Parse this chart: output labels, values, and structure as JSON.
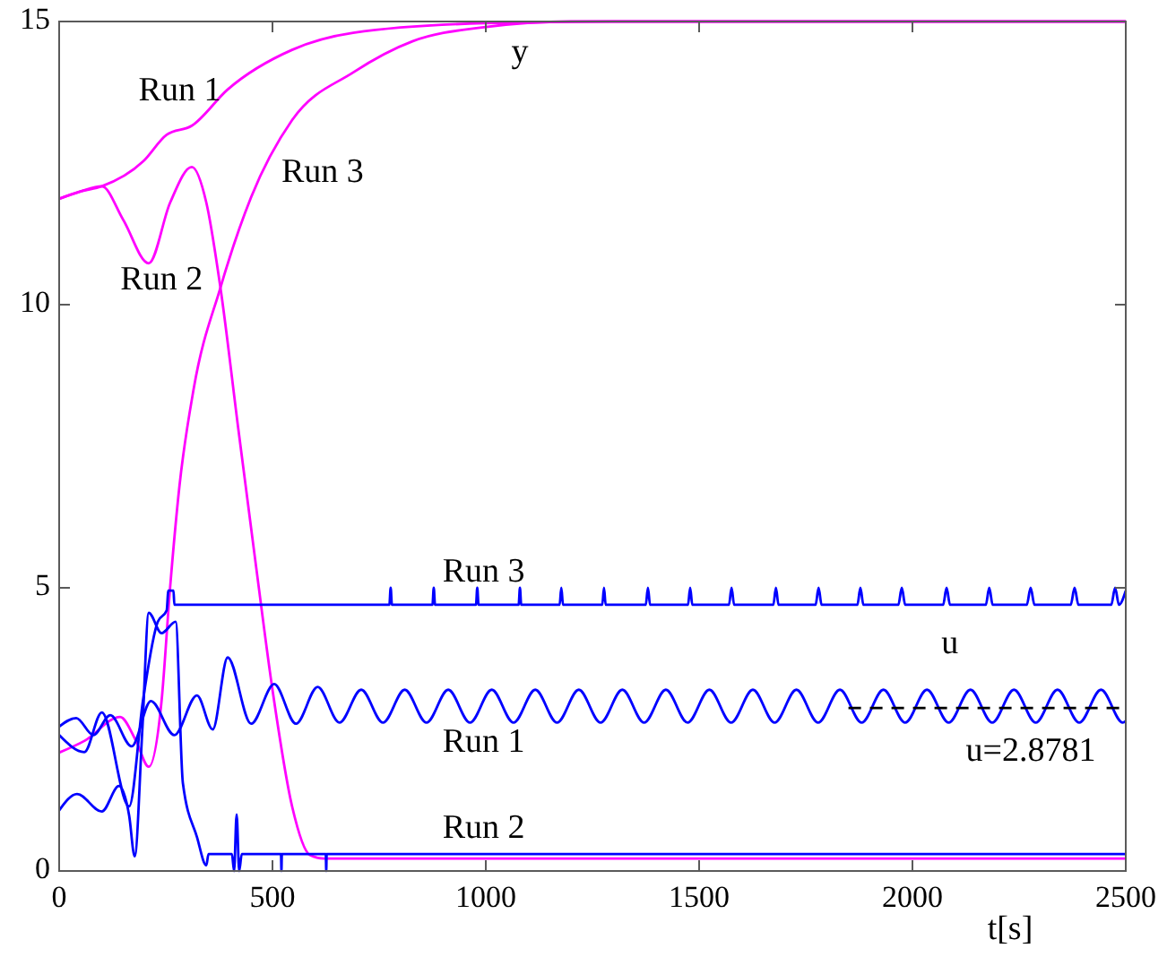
{
  "chart_data": {
    "type": "line",
    "xlabel": "t[s]",
    "xlim": [
      0,
      2500
    ],
    "ylim": [
      0,
      15
    ],
    "xticks": [
      0,
      500,
      1000,
      1500,
      2000,
      2500
    ],
    "yticks": [
      0,
      5,
      10,
      15
    ],
    "grid": false,
    "marker": "none",
    "line_style": "solid",
    "series": [
      {
        "color": "#ff00ff",
        "x": [
          0,
          50,
          100,
          197,
          252,
          311,
          395,
          546,
          689,
          996,
          1300,
          2500
        ],
        "values": [
          11.87,
          12.0,
          12.09,
          12.53,
          13.0,
          13.16,
          13.8,
          14.5,
          14.8,
          14.97,
          15,
          15
        ]
      },
      {
        "color": "#ff00ff",
        "x": [
          0,
          50,
          100,
          150,
          210,
          260,
          311,
          345,
          378,
          420,
          462,
          500,
          546,
          588,
          620,
          2500
        ],
        "values": [
          11.87,
          12.0,
          12.09,
          11.5,
          10.73,
          11.8,
          12.43,
          11.8,
          10.3,
          7.8,
          5.35,
          3.2,
          1.14,
          0.28,
          0.22,
          0.22
        ]
      },
      {
        "color": "#ff00ff",
        "x": [
          0,
          60,
          143,
          180,
          210,
          240,
          260,
          282,
          315,
          378,
          450,
          546,
          689,
          828,
          996,
          1200,
          2500
        ],
        "values": [
          2.09,
          2.3,
          2.72,
          2.3,
          1.84,
          3.0,
          5.0,
          6.8,
          8.5,
          10.3,
          11.9,
          13.26,
          14.1,
          14.65,
          14.9,
          15,
          15
        ]
      },
      {
        "color": "#0000ff",
        "x": [
          0,
          40,
          80,
          120,
          170,
          215,
          270,
          323,
          360,
          395,
          450,
          504,
          555,
          606,
          657,
          708,
          759,
          810,
          861,
          912,
          963,
          1014,
          1065,
          1116,
          1167,
          1218,
          1269,
          1320,
          1371,
          1422,
          1473,
          1524,
          1575,
          1626,
          1677,
          1728,
          1779,
          1830,
          1881,
          1932,
          1983,
          2034,
          2085,
          2136,
          2187,
          2238,
          2289,
          2340,
          2391,
          2442,
          2493,
          2500
        ],
        "values": [
          2.55,
          2.7,
          2.4,
          2.75,
          2.2,
          3.0,
          2.4,
          3.1,
          2.5,
          3.77,
          2.6,
          3.3,
          2.6,
          3.25,
          2.62,
          3.2,
          2.62,
          3.2,
          2.62,
          3.2,
          2.62,
          3.2,
          2.62,
          3.2,
          2.62,
          3.2,
          2.62,
          3.2,
          2.62,
          3.2,
          2.62,
          3.2,
          2.62,
          3.2,
          2.62,
          3.2,
          2.62,
          3.2,
          2.62,
          3.2,
          2.62,
          3.2,
          2.62,
          3.2,
          2.62,
          3.2,
          2.62,
          3.2,
          2.62,
          3.2,
          2.62,
          2.65
        ]
      },
      {
        "color": "#0000ff",
        "x": [
          0,
          42,
          100,
          140,
          164,
          177,
          195,
          210,
          240,
          273,
          290,
          323,
          345,
          350,
          405,
          410,
          416,
          422,
          428,
          520,
          521,
          522,
          625,
          626,
          627,
          2500
        ],
        "values": [
          1.07,
          1.36,
          1.05,
          1.5,
          0.98,
          0.26,
          2.5,
          4.56,
          4.2,
          4.4,
          1.55,
          0.6,
          0.1,
          0.3,
          0.3,
          0.0,
          1.0,
          0.0,
          0.3,
          0.3,
          0.0,
          0.3,
          0.3,
          0.0,
          0.3,
          0.3
        ]
      },
      {
        "color": "#0000ff",
        "x": [
          0,
          59,
          100,
          164,
          197,
          231,
          252,
          256,
          262,
          268,
          270,
          774,
          777,
          780,
          875,
          878,
          881,
          977,
          980,
          983,
          1077,
          1080,
          1083,
          1173,
          1177,
          1181,
          1273,
          1277,
          1281,
          1375,
          1380,
          1385,
          1474,
          1479,
          1484,
          1570,
          1576,
          1582,
          1674,
          1680,
          1686,
          1773,
          1780,
          1787,
          1871,
          1878,
          1885,
          1967,
          1975,
          1983,
          2072,
          2080,
          2088,
          2172,
          2180,
          2188,
          2268,
          2277,
          2286,
          2371,
          2380,
          2389,
          2466,
          2475,
          2484,
          2500
        ],
        "values": [
          2.4,
          2.1,
          2.8,
          1.14,
          3.04,
          4.4,
          4.6,
          4.95,
          4.95,
          4.95,
          4.7,
          4.7,
          5.0,
          4.7,
          4.7,
          5.0,
          4.7,
          4.7,
          5.0,
          4.7,
          4.7,
          5.0,
          4.7,
          4.7,
          5.0,
          4.7,
          4.7,
          5.0,
          4.7,
          4.7,
          5.0,
          4.7,
          4.7,
          5.0,
          4.7,
          4.7,
          5.0,
          4.7,
          4.7,
          5.0,
          4.7,
          4.7,
          5.0,
          4.7,
          4.7,
          5.0,
          4.7,
          4.7,
          5.0,
          4.7,
          4.7,
          5.0,
          4.7,
          4.7,
          5.0,
          4.7,
          4.7,
          5.0,
          4.7,
          4.7,
          5.0,
          4.7,
          4.7,
          5.0,
          4.7,
          4.95
        ]
      },
      {
        "color": "#000000",
        "line_style": "dashed",
        "x": [
          1850,
          2500
        ],
        "values": [
          2.8781,
          2.8781
        ]
      }
    ],
    "annotations": [
      "Run 1",
      "Run 2",
      "Run 3",
      "y",
      "Run 3",
      "u",
      "Run 1",
      "u=2.8781",
      "Run 2"
    ]
  }
}
